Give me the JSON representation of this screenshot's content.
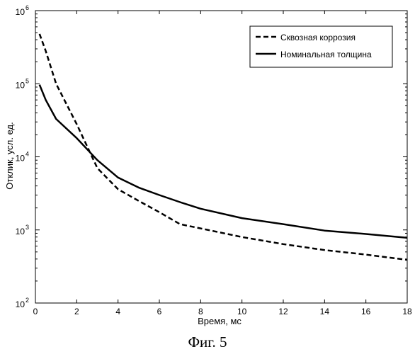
{
  "chart_data": {
    "type": "line",
    "xlabel": "Время, мс",
    "ylabel": "Отклик, усл. ед.",
    "xlim": [
      0,
      18
    ],
    "ylim": [
      100,
      1000000
    ],
    "yscale": "log",
    "x_ticks": [
      "0",
      "2",
      "4",
      "6",
      "8",
      "10",
      "12",
      "14",
      "16",
      "18"
    ],
    "x_tick_values": [
      0,
      2,
      4,
      6,
      8,
      10,
      12,
      14,
      16,
      18
    ],
    "y_ticks": [
      {
        "value": 100,
        "base": "10",
        "exp": "2"
      },
      {
        "value": 1000,
        "base": "10",
        "exp": "3"
      },
      {
        "value": 10000,
        "base": "10",
        "exp": "4"
      },
      {
        "value": 100000,
        "base": "10",
        "exp": "5"
      },
      {
        "value": 1000000,
        "base": "10",
        "exp": "6"
      }
    ],
    "grid": false,
    "legend_position": "top-right",
    "series": [
      {
        "name": "Сквозная коррозия",
        "style": "dashed",
        "color": "#000000",
        "x": [
          0.2,
          0.5,
          1.0,
          2.0,
          3.0,
          4.0,
          5.0,
          6.0,
          7.0,
          8.0,
          10.0,
          12.0,
          14.0,
          16.0,
          18.0
        ],
        "y": [
          480000,
          280000,
          100000,
          28000,
          7000,
          3600,
          2500,
          1750,
          1200,
          1050,
          800,
          640,
          530,
          460,
          390
        ]
      },
      {
        "name": "Номинальная толщина",
        "style": "solid",
        "color": "#000000",
        "x": [
          0.2,
          0.5,
          1.0,
          2.0,
          3.0,
          4.0,
          5.0,
          6.0,
          7.0,
          8.0,
          10.0,
          12.0,
          14.0,
          16.0,
          18.0
        ],
        "y": [
          97000,
          60000,
          33000,
          18000,
          9000,
          5200,
          3800,
          3000,
          2400,
          1950,
          1450,
          1200,
          980,
          880,
          780
        ]
      }
    ]
  },
  "caption": "Фиг. 5"
}
